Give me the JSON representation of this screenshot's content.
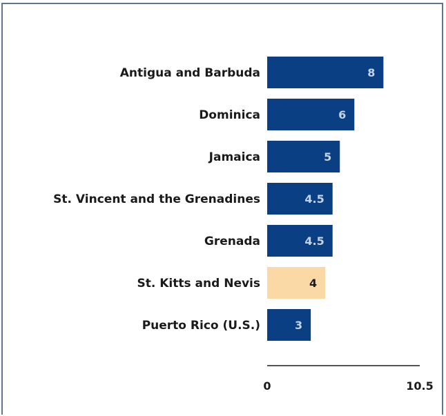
{
  "chart_data": {
    "type": "bar",
    "orientation": "horizontal",
    "categories": [
      "Antigua and Barbuda",
      "Dominica",
      "Jamaica",
      "St. Vincent and the Grenadines",
      "Grenada",
      "St. Kitts and Nevis",
      "Puerto Rico (U.S.)"
    ],
    "values": [
      8,
      6,
      5,
      4.5,
      4.5,
      4,
      3
    ],
    "value_labels": [
      "8",
      "6",
      "5",
      "4.5",
      "4.5",
      "4",
      "3"
    ],
    "highlight_index": 5,
    "xlim": [
      0,
      10.5
    ],
    "x_ticks": [
      "0",
      "10.5"
    ],
    "grid": false,
    "colors": {
      "bar": "#0b3f84",
      "highlight_bar": "#fad9a6",
      "bar_label": "#c5d3e6",
      "highlight_label": "#1a1a1a",
      "axis": "#1a1a1a",
      "frame": "#5b7592"
    }
  }
}
